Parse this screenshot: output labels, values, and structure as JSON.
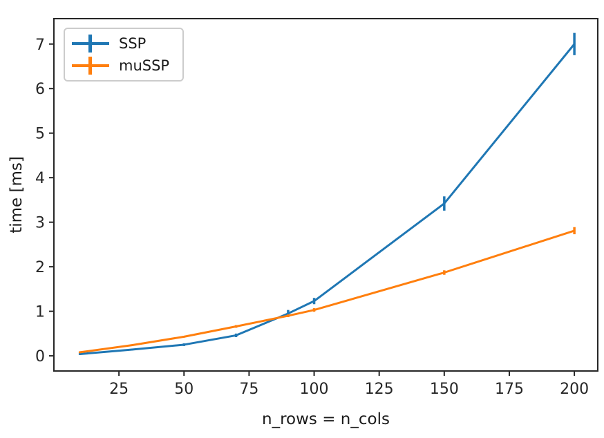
{
  "chart_data": {
    "type": "line",
    "title": "",
    "xlabel": "n_rows = n_cols",
    "ylabel": "time [ms]",
    "xlim": [
      0,
      209
    ],
    "ylim": [
      -0.34,
      7.57
    ],
    "x_ticks": [
      25,
      50,
      75,
      100,
      125,
      150,
      175,
      200
    ],
    "y_ticks": [
      0,
      1,
      2,
      3,
      4,
      5,
      6,
      7
    ],
    "grid": false,
    "legend_position": "upper-left",
    "marker": "errorbar",
    "x": [
      10,
      30,
      50,
      70,
      90,
      100,
      150,
      200
    ],
    "series": [
      {
        "name": "SSP",
        "color": "#1f77b4",
        "values": [
          0.04,
          0.14,
          0.25,
          0.46,
          0.95,
          1.23,
          3.42,
          7.0
        ],
        "errors": [
          0.02,
          0.02,
          0.03,
          0.04,
          0.08,
          0.07,
          0.16,
          0.25
        ]
      },
      {
        "name": "muSSP",
        "color": "#ff7f0e",
        "values": [
          0.08,
          0.24,
          0.43,
          0.66,
          0.9,
          1.03,
          1.87,
          2.81
        ],
        "errors": [
          0.02,
          0.02,
          0.02,
          0.03,
          0.03,
          0.04,
          0.05,
          0.08
        ]
      }
    ],
    "axis_color": "#262626",
    "tick_label_color": "#262626"
  }
}
